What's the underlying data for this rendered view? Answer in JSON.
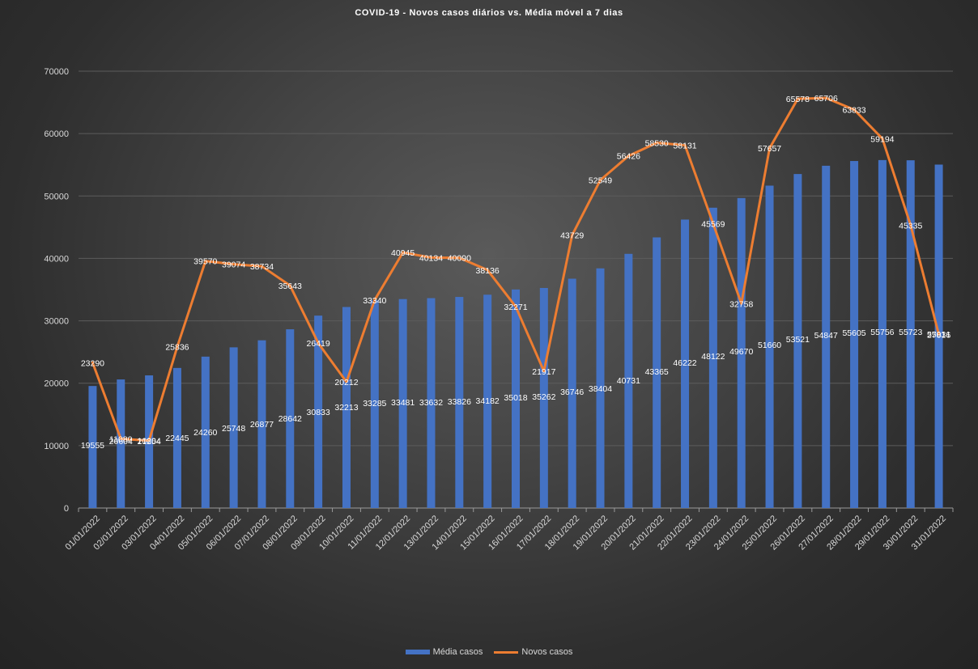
{
  "chart_data": {
    "type": "bar",
    "title": "COVID-19  - Novos casos diários  vs. Média  móvel  a 7 dias",
    "xlabel": "",
    "ylabel": "",
    "ylim": [
      0,
      70000
    ],
    "yticks": [
      0,
      10000,
      20000,
      30000,
      40000,
      50000,
      60000,
      70000
    ],
    "grid": true,
    "legend_position": "bottom",
    "categories": [
      "01/01/2022",
      "02/01/2022",
      "03/01/2022",
      "04/01/2022",
      "05/01/2022",
      "06/01/2022",
      "07/01/2022",
      "08/01/2022",
      "09/01/2022",
      "10/01/2022",
      "11/01/2022",
      "12/01/2022",
      "13/01/2022",
      "14/01/2022",
      "15/01/2022",
      "16/01/2022",
      "17/01/2022",
      "18/01/2022",
      "19/01/2022",
      "20/01/2022",
      "21/01/2022",
      "22/01/2022",
      "23/01/2022",
      "24/01/2022",
      "25/01/2022",
      "26/01/2022",
      "27/01/2022",
      "28/01/2022",
      "29/01/2022",
      "30/01/2022",
      "31/01/2022"
    ],
    "series": [
      {
        "name": "Média casos",
        "type": "bar",
        "color": "#4472c4",
        "values": [
          19555,
          20604,
          21254,
          22445,
          24260,
          25748,
          26877,
          28642,
          30833,
          32213,
          33285,
          33481,
          33632,
          33826,
          34182,
          35018,
          35262,
          36746,
          38404,
          40731,
          43365,
          46222,
          48122,
          49670,
          51660,
          53521,
          54847,
          55605,
          55756,
          55723,
          55031
        ]
      },
      {
        "name": "Novos casos",
        "type": "line",
        "color": "#ed7d31",
        "values": [
          23290,
          11080,
          10804,
          25836,
          39570,
          39074,
          38734,
          35643,
          26419,
          20212,
          33340,
          40945,
          40134,
          40090,
          38136,
          32271,
          21917,
          43729,
          52549,
          56426,
          58530,
          58131,
          45569,
          32758,
          57657,
          65578,
          65706,
          63833,
          59194,
          45335,
          27816
        ]
      }
    ]
  }
}
